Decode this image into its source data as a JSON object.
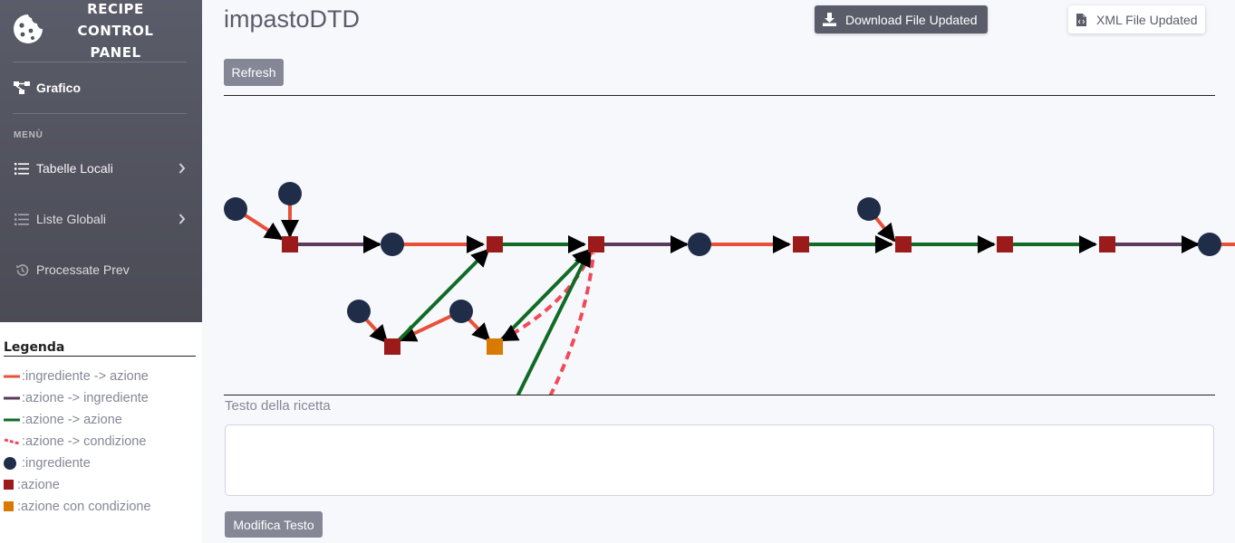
{
  "sidebar": {
    "brand_lines": [
      "RECIPE",
      "CONTROL",
      "PANEL"
    ],
    "active_item": {
      "label": "Grafico",
      "icon": "graph-icon"
    },
    "menu_heading": "MENÙ",
    "items": [
      {
        "label": "Tabelle Locali",
        "icon": "list-icon"
      },
      {
        "label": "Liste Globali",
        "icon": "list-icon"
      },
      {
        "label": "Processate Prev",
        "icon": "history-icon"
      }
    ]
  },
  "legend": {
    "title": "Legenda",
    "items": [
      {
        "label": ":ingrediente -> azione",
        "symbol": "line",
        "color": "#e8503a"
      },
      {
        "label": ":azione -> ingrediente",
        "symbol": "line",
        "color": "#5a3a5a"
      },
      {
        "label": ":azione -> azione",
        "symbol": "line",
        "color": "#116b26"
      },
      {
        "label": ":azione -> condizione",
        "symbol": "dashed-line",
        "color": "#f04a5a"
      },
      {
        "label": ":ingrediente",
        "symbol": "circle",
        "color": "#1f2d48"
      },
      {
        "label": ":azione",
        "symbol": "square",
        "color": "#9b1b1b"
      },
      {
        "label": ":azione con condizione",
        "symbol": "square",
        "color": "#d97a00"
      }
    ]
  },
  "header": {
    "title": "impastoDTD",
    "download_button": "Download File Updated",
    "xml_button": "XML File Updated",
    "refresh_button": "Refresh"
  },
  "recipe_text": {
    "label": "Testo della ricetta",
    "value": "",
    "edit_button": "Modifica Testo"
  },
  "colors": {
    "ingredient": "#1f2d48",
    "action": "#9b1b1b",
    "conditional_action": "#d97a00",
    "ingredient_to_action": "#e8503a",
    "action_to_ingredient": "#5a3a5a",
    "action_to_action": "#116b26",
    "action_to_condition": "#f04a5a"
  }
}
